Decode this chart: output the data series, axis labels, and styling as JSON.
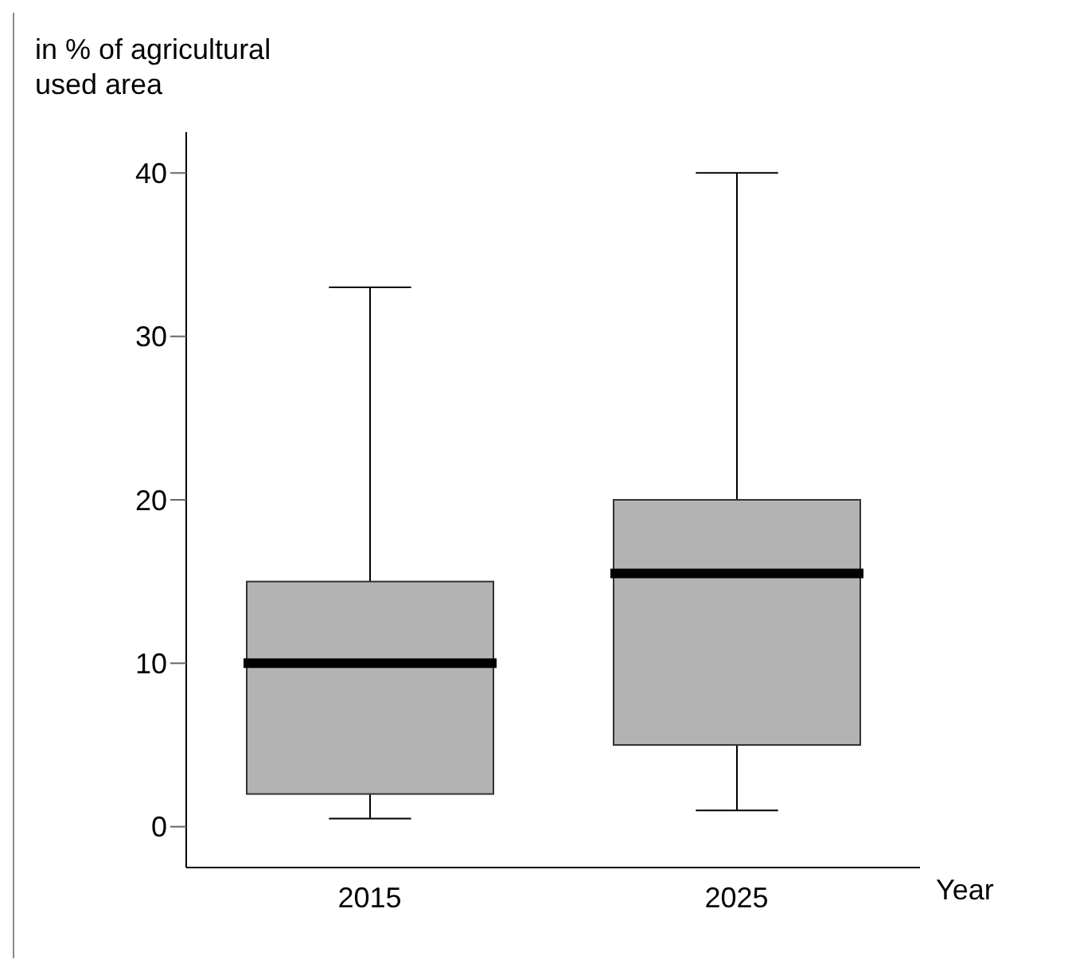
{
  "chart_data": {
    "type": "box",
    "ylabel": "in % of agricultural used area",
    "xlabel": "Year",
    "categories": [
      "2015",
      "2025"
    ],
    "boxes": [
      {
        "low": 0.5,
        "q1": 2,
        "median": 10,
        "q3": 15,
        "high": 33
      },
      {
        "low": 1,
        "q1": 5,
        "median": 15.5,
        "q3": 20,
        "high": 40
      }
    ],
    "color": "#b3b3b3",
    "ylim": [
      -2.5,
      42.5
    ],
    "yticks": [
      0,
      10,
      20,
      30,
      40
    ]
  }
}
